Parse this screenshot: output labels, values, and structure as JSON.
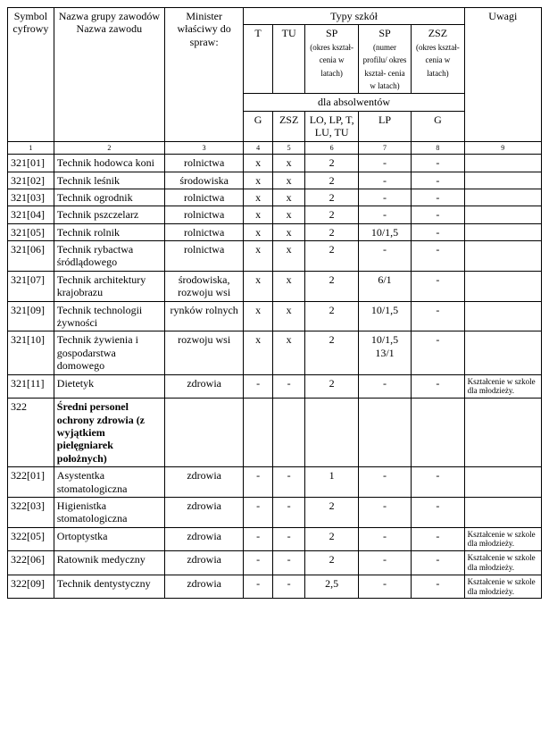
{
  "header": {
    "col1": "Symbol cyfrowy",
    "col2": "Nazwa grupy zawodów\nNazwa zawodu",
    "col3": "Minister właściwy do spraw:",
    "typy_szkol": "Typy szkół",
    "t": "T",
    "tu": "TU",
    "sp1": "SP",
    "sp1_sub": "(okres kształ-\ncenia w latach)",
    "sp2": "SP",
    "sp2_sub": "(numer profilu/ okres kształ-\ncenia w latach)",
    "zsz": "ZSZ",
    "zsz_sub": "(okres kształ-\ncenia w latach)",
    "uwagi": "Uwagi",
    "dla_abs": "dla absolwentów",
    "g1": "G",
    "zsz2": "ZSZ",
    "lolp": "LO, LP, T, LU, TU",
    "lp": "LP",
    "g2": "G",
    "num1": "1",
    "num2": "2",
    "num3": "3",
    "num4": "4",
    "num5": "5",
    "num6": "6",
    "num7": "7",
    "num8": "8",
    "num9": "9"
  },
  "rows": [
    {
      "sym": "321[01]",
      "name": "Technik hodowca koni",
      "min": "rolnictwa",
      "t": "x",
      "tu": "x",
      "sp1": "2",
      "sp2": "-",
      "zsz": "-",
      "uw": ""
    },
    {
      "sym": "321[02]",
      "name": "Technik leśnik",
      "min": "środowiska",
      "t": "x",
      "tu": "x",
      "sp1": "2",
      "sp2": "-",
      "zsz": "-",
      "uw": ""
    },
    {
      "sym": "321[03]",
      "name": "Technik ogrodnik",
      "min": "rolnictwa",
      "t": "x",
      "tu": "x",
      "sp1": "2",
      "sp2": "-",
      "zsz": "-",
      "uw": ""
    },
    {
      "sym": "321[04]",
      "name": "Technik pszczelarz",
      "min": "rolnictwa",
      "t": "x",
      "tu": "x",
      "sp1": "2",
      "sp2": "-",
      "zsz": "-",
      "uw": ""
    },
    {
      "sym": "321[05]",
      "name": "Technik rolnik",
      "min": "rolnictwa",
      "t": "x",
      "tu": "x",
      "sp1": "2",
      "sp2": "10/1,5",
      "zsz": "-",
      "uw": ""
    },
    {
      "sym": "321[06]",
      "name": "Technik rybactwa śródlądowego",
      "min": "rolnictwa",
      "t": "x",
      "tu": "x",
      "sp1": "2",
      "sp2": "-",
      "zsz": "-",
      "uw": ""
    },
    {
      "sym": "321[07]",
      "name": "Technik architektury krajobrazu",
      "min": "środowiska, rozwoju wsi",
      "t": "x",
      "tu": "x",
      "sp1": "2",
      "sp2": "6/1",
      "zsz": "-",
      "uw": ""
    },
    {
      "sym": "321[09]",
      "name": "Technik technologii żywności",
      "min": "rynków rolnych",
      "t": "x",
      "tu": "x",
      "sp1": "2",
      "sp2": "10/1,5",
      "zsz": "-",
      "uw": ""
    },
    {
      "sym": "321[10]",
      "name": "Technik żywienia i gospodarstwa domowego",
      "min": "rozwoju wsi",
      "t": "x",
      "tu": "x",
      "sp1": "2",
      "sp2": "10/1,5 13/1",
      "zsz": "-",
      "uw": ""
    },
    {
      "sym": "321[11]",
      "name": "Dietetyk",
      "min": "zdrowia",
      "t": "-",
      "tu": "-",
      "sp1": "2",
      "sp2": "-",
      "zsz": "-",
      "uw": "Kształcenie w szkole dla młodzieży."
    },
    {
      "sym": "322",
      "name": "Średni personel ochrony zdrowia (z wyjątkiem pielęgniarek położnych)",
      "min": "",
      "t": "",
      "tu": "",
      "sp1": "",
      "sp2": "",
      "zsz": "",
      "uw": "",
      "bold": true
    },
    {
      "sym": "322[01]",
      "name": "Asystentka stomatologiczna",
      "min": "zdrowia",
      "t": "-",
      "tu": "-",
      "sp1": "1",
      "sp2": "-",
      "zsz": "-",
      "uw": ""
    },
    {
      "sym": "322[03]",
      "name": "Higienistka stomatologiczna",
      "min": "zdrowia",
      "t": "-",
      "tu": "-",
      "sp1": "2",
      "sp2": "-",
      "zsz": "-",
      "uw": ""
    },
    {
      "sym": "322[05]",
      "name": "Ortoptystka",
      "min": "zdrowia",
      "t": "-",
      "tu": "-",
      "sp1": "2",
      "sp2": "-",
      "zsz": "-",
      "uw": "Kształcenie w szkole dla młodzieży."
    },
    {
      "sym": "322[06]",
      "name": "Ratownik medyczny",
      "min": "zdrowia",
      "t": "-",
      "tu": "-",
      "sp1": "2",
      "sp2": "-",
      "zsz": "-",
      "uw": "Kształcenie w szkole dla młodzieży."
    },
    {
      "sym": "322[09]",
      "name": "Technik dentystyczny",
      "min": "zdrowia",
      "t": "-",
      "tu": "-",
      "sp1": "2,5",
      "sp2": "-",
      "zsz": "-",
      "uw": "Kształcenie w szkole dla młodzieży."
    }
  ],
  "colwidths": {
    "c1": 48,
    "c2": 115,
    "c3": 82,
    "c4": 30,
    "c5": 34,
    "c6": 55,
    "c7": 55,
    "c8": 55,
    "c9": 80
  }
}
